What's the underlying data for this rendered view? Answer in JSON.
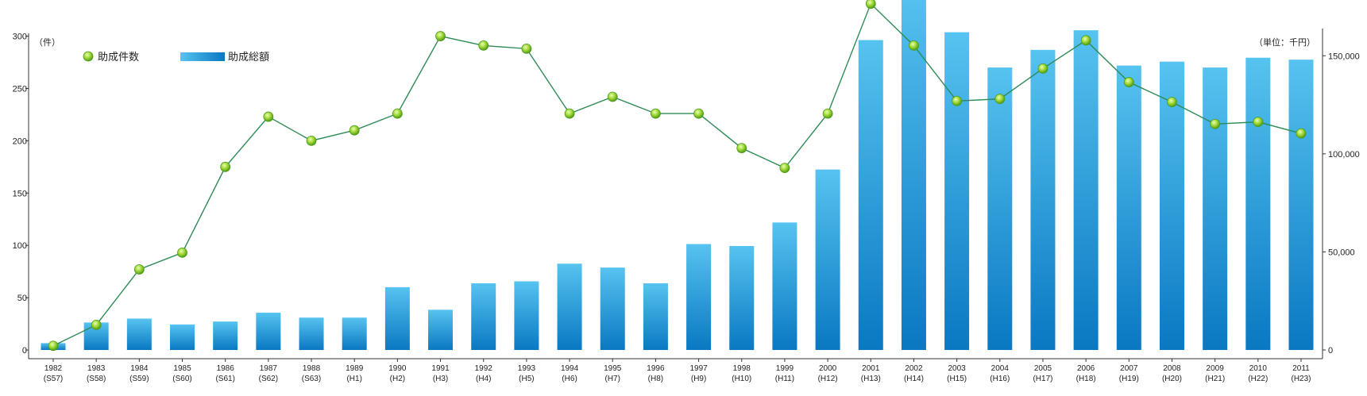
{
  "chart_data": {
    "type": "bar",
    "y_unit_left": "（件）",
    "y_unit_right": "（単位：千円）",
    "legend": {
      "line_label": "助成件数",
      "bar_label": "助成総額"
    },
    "categories": [
      {
        "year": "1982",
        "era": "(S57)"
      },
      {
        "year": "1983",
        "era": "(S58)"
      },
      {
        "year": "1984",
        "era": "(S59)"
      },
      {
        "year": "1985",
        "era": "(S60)"
      },
      {
        "year": "1986",
        "era": "(S61)"
      },
      {
        "year": "1987",
        "era": "(S62)"
      },
      {
        "year": "1988",
        "era": "(S63)"
      },
      {
        "year": "1989",
        "era": "(H1)"
      },
      {
        "year": "1990",
        "era": "(H2)"
      },
      {
        "year": "1991",
        "era": "(H3)"
      },
      {
        "year": "1992",
        "era": "(H4)"
      },
      {
        "year": "1993",
        "era": "(H5)"
      },
      {
        "year": "1994",
        "era": "(H6)"
      },
      {
        "year": "1995",
        "era": "(H7)"
      },
      {
        "year": "1996",
        "era": "(H8)"
      },
      {
        "year": "1997",
        "era": "(H9)"
      },
      {
        "year": "1998",
        "era": "(H10)"
      },
      {
        "year": "1999",
        "era": "(H11)"
      },
      {
        "year": "2000",
        "era": "(H12)"
      },
      {
        "year": "2001",
        "era": "(H13)"
      },
      {
        "year": "2002",
        "era": "(H14)"
      },
      {
        "year": "2003",
        "era": "(H15)"
      },
      {
        "year": "2004",
        "era": "(H16)"
      },
      {
        "year": "2005",
        "era": "(H17)"
      },
      {
        "year": "2006",
        "era": "(H18)"
      },
      {
        "year": "2007",
        "era": "(H19)"
      },
      {
        "year": "2008",
        "era": "(H20)"
      },
      {
        "year": "2009",
        "era": "(H21)"
      },
      {
        "year": "2010",
        "era": "(H22)"
      },
      {
        "year": "2011",
        "era": "(H23)"
      }
    ],
    "series": [
      {
        "name": "助成総額",
        "kind": "bar",
        "axis": "right",
        "color_top": "#56c3f0",
        "color_bottom": "#0a78c2",
        "values": [
          3500,
          14000,
          16000,
          13000,
          14500,
          19000,
          16500,
          16500,
          32000,
          20500,
          34000,
          35000,
          44000,
          42000,
          34000,
          54000,
          53000,
          65000,
          92000,
          158000,
          185000,
          162000,
          144000,
          153000,
          163000,
          145000,
          147000,
          144000,
          149000,
          148000
        ]
      },
      {
        "name": "助成件数",
        "kind": "line",
        "axis": "left",
        "color": "#2e8b57",
        "marker_color": "#9ad431",
        "values": [
          4,
          24,
          77,
          93,
          175,
          223,
          200,
          210,
          226,
          300,
          291,
          288,
          226,
          242,
          226,
          226,
          193,
          174,
          226,
          331,
          291,
          238,
          240,
          269,
          296,
          256,
          237,
          216,
          218,
          207
        ]
      }
    ],
    "y_left": {
      "ticks": [
        "0",
        "50",
        "100",
        "150",
        "200",
        "250",
        "300"
      ],
      "range": [
        0,
        330
      ]
    },
    "y_right": {
      "ticks": [
        "0",
        "50,000",
        "100,000",
        "150,000"
      ],
      "range": [
        0,
        176000
      ]
    },
    "grid": false
  }
}
